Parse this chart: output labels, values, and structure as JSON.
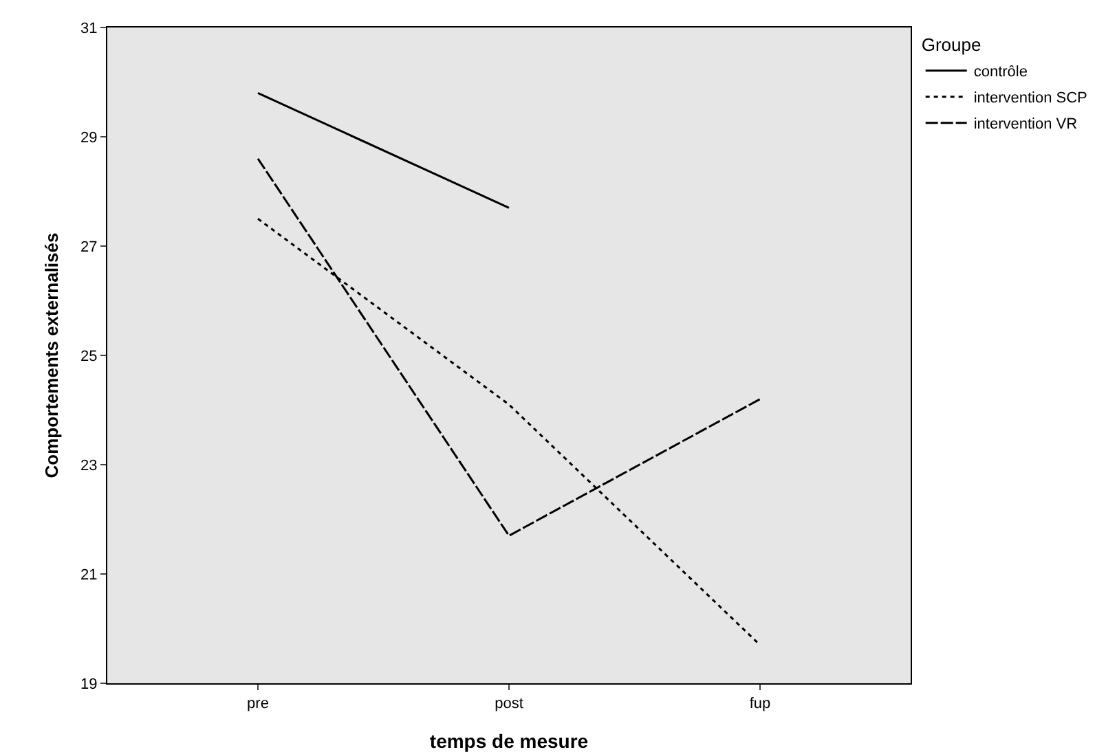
{
  "chart_data": {
    "type": "line",
    "xlabel": "temps de mesure",
    "ylabel": "Comportements externalisés",
    "legend_title": "Groupe",
    "categories": [
      "pre",
      "post",
      "fup"
    ],
    "series": [
      {
        "name": "contrôle",
        "color": "#000000",
        "line_style": "solid",
        "values": [
          29.8,
          27.7,
          null
        ]
      },
      {
        "name": "intervention SCP",
        "color": "#000000",
        "line_style": "dotted",
        "values": [
          27.5,
          24.1,
          19.7
        ]
      },
      {
        "name": "intervention VR",
        "color": "#000000",
        "line_style": "dashed",
        "values": [
          28.6,
          21.7,
          24.2
        ]
      }
    ],
    "ylim": [
      19,
      31
    ],
    "yticks": [
      19,
      21,
      23,
      25,
      27,
      29,
      31
    ],
    "grid": false,
    "legend": "top right",
    "marker": "none"
  }
}
